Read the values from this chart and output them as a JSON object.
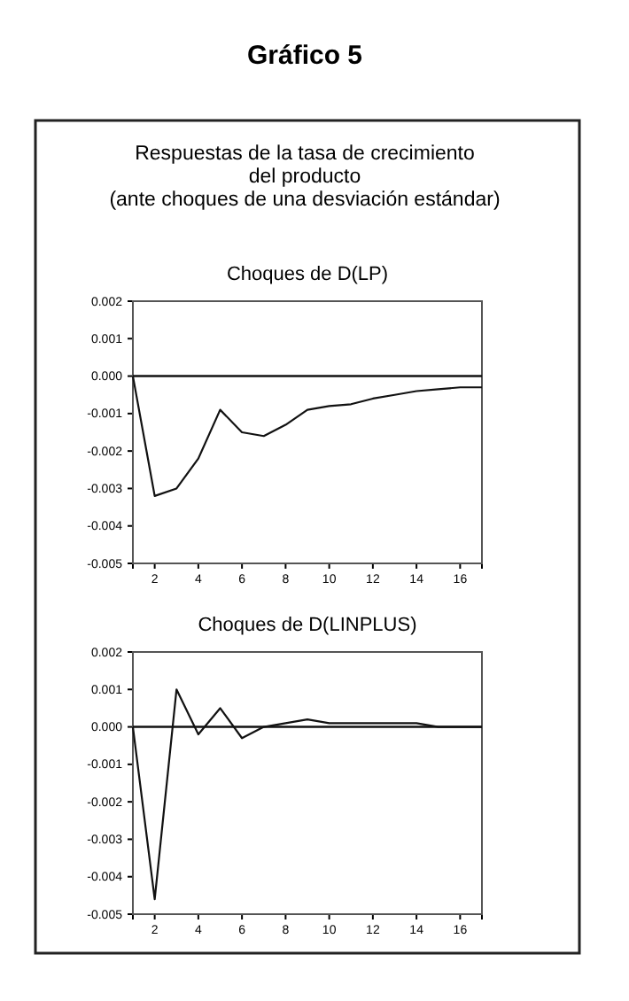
{
  "chart_data": [
    {
      "type": "line",
      "title": "Choques de D(LP)",
      "annotations": [
        "Gráfico 5",
        "Respuestas de la tasa de crecimiento\ndel producto\n(ante choques de una desviación estándar)"
      ],
      "x": [
        1,
        2,
        3,
        4,
        5,
        6,
        7,
        8,
        9,
        10,
        11,
        12,
        13,
        14,
        15,
        16,
        17
      ],
      "series": [
        {
          "color": "#111111",
          "values": [
            0,
            -0.0032,
            -0.003,
            -0.0022,
            -0.0009,
            -0.0015,
            -0.0016,
            -0.0013,
            -0.0009,
            -0.0008,
            -0.00075,
            -0.0006,
            -0.0005,
            -0.0004,
            -0.00035,
            -0.0003,
            -0.0003
          ]
        }
      ],
      "xlim": [
        1,
        17
      ],
      "xticks": [
        2,
        4,
        6,
        8,
        10,
        12,
        14,
        16
      ],
      "ylim": [
        -0.005,
        0.002
      ],
      "yticks": [
        {
          "value": -0.005,
          "label": "-0.005"
        },
        {
          "value": -0.004,
          "label": "-0.004"
        },
        {
          "value": -0.003,
          "label": "-0.003"
        },
        {
          "value": -0.002,
          "label": "-0.002"
        },
        {
          "value": -0.001,
          "label": "-0.001"
        },
        {
          "value": 0,
          "label": "0.000"
        },
        {
          "value": 0.001,
          "label": "0.001"
        },
        {
          "value": 0.002,
          "label": "0.002"
        }
      ],
      "ref_lines": [
        {
          "axis": "y",
          "value": 0,
          "color": "#111111"
        }
      ],
      "grid": false
    },
    {
      "type": "line",
      "title": "Choques de D(LINPLUS)",
      "x": [
        1,
        2,
        3,
        4,
        5,
        6,
        7,
        8,
        9,
        10,
        11,
        12,
        13,
        14,
        15,
        16,
        17
      ],
      "series": [
        {
          "color": "#111111",
          "values": [
            0,
            -0.0046,
            0.001,
            -0.0002,
            0.0005,
            -0.0003,
            0,
            0.0001,
            0.0002,
            0.0001,
            0.0001,
            0.0001,
            0.0001,
            0.0001,
            0,
            0,
            0
          ]
        }
      ],
      "xlim": [
        1,
        17
      ],
      "xticks": [
        2,
        4,
        6,
        8,
        10,
        12,
        14,
        16
      ],
      "ylim": [
        -0.005,
        0.002
      ],
      "yticks": [
        {
          "value": -0.005,
          "label": "-0.005"
        },
        {
          "value": -0.004,
          "label": "-0.004"
        },
        {
          "value": -0.003,
          "label": "-0.003"
        },
        {
          "value": -0.002,
          "label": "-0.002"
        },
        {
          "value": -0.001,
          "label": "-0.001"
        },
        {
          "value": 0,
          "label": "0.000"
        },
        {
          "value": 0.001,
          "label": "0.001"
        },
        {
          "value": 0.002,
          "label": "0.002"
        }
      ],
      "ref_lines": [
        {
          "axis": "y",
          "value": 0,
          "color": "#111111"
        }
      ],
      "grid": false
    }
  ]
}
